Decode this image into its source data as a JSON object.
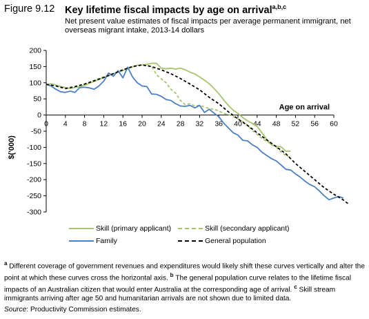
{
  "figure": {
    "number": "Figure 9.12",
    "title": "Key lifetime fiscal impacts by age on arrival",
    "title_notes": "a,b,c",
    "subtitle": "Net present value estimates of fiscal impacts per average permanent immigrant, net overseas migrant intake, 2013-14 dollars"
  },
  "chart_data": {
    "type": "line",
    "xlabel": "Age on arrival",
    "ylabel": "$('000)",
    "xlim": [
      0,
      60
    ],
    "ylim": [
      -300,
      200
    ],
    "xticks": [
      "0",
      "4",
      "8",
      "12",
      "16",
      "20",
      "24",
      "28",
      "32",
      "36",
      "40",
      "44",
      "48",
      "52",
      "56",
      "60"
    ],
    "yticks": [
      "200",
      "150",
      "100",
      "50",
      "0",
      "-50",
      "-100",
      "-150",
      "-200",
      "-250",
      "-300"
    ],
    "grid": false,
    "legend_position": "bottom",
    "series": [
      {
        "name": "Skill (primary applicant)",
        "color": "#a6c46a",
        "dash": "solid",
        "points": [
          [
            0,
            92
          ],
          [
            1,
            97
          ],
          [
            2,
            93
          ],
          [
            3,
            88
          ],
          [
            4,
            85
          ],
          [
            5,
            82
          ],
          [
            6,
            85
          ],
          [
            7,
            88
          ],
          [
            8,
            92
          ],
          [
            9,
            98
          ],
          [
            10,
            104
          ],
          [
            11,
            110
          ],
          [
            12,
            116
          ],
          [
            13,
            122
          ],
          [
            14,
            128
          ],
          [
            15,
            133
          ],
          [
            16,
            138
          ],
          [
            17,
            143
          ],
          [
            18,
            149
          ],
          [
            19,
            154
          ],
          [
            20,
            155
          ],
          [
            21,
            157
          ],
          [
            22,
            160
          ],
          [
            23,
            160
          ],
          [
            24,
            145
          ],
          [
            25,
            143
          ],
          [
            26,
            145
          ],
          [
            27,
            142
          ],
          [
            28,
            145
          ],
          [
            29,
            140
          ],
          [
            30,
            133
          ],
          [
            31,
            127
          ],
          [
            32,
            118
          ],
          [
            33,
            108
          ],
          [
            34,
            97
          ],
          [
            35,
            82
          ],
          [
            36,
            66
          ],
          [
            37,
            47
          ],
          [
            38,
            30
          ],
          [
            39,
            15
          ],
          [
            40,
            5
          ],
          [
            41,
            -8
          ],
          [
            42,
            -18
          ],
          [
            43,
            -26
          ],
          [
            44,
            -35
          ],
          [
            45,
            -55
          ],
          [
            46,
            -75
          ],
          [
            47,
            -92
          ],
          [
            48,
            -97
          ],
          [
            49,
            -98
          ],
          [
            50,
            -112
          ],
          [
            51,
            -112
          ]
        ]
      },
      {
        "name": "Skill (secondary applicant)",
        "color": "#a6c46a",
        "dash": "dashed",
        "points": [
          [
            0,
            93
          ],
          [
            1,
            96
          ],
          [
            2,
            92
          ],
          [
            3,
            86
          ],
          [
            4,
            84
          ],
          [
            5,
            82
          ],
          [
            6,
            86
          ],
          [
            7,
            90
          ],
          [
            8,
            95
          ],
          [
            9,
            101
          ],
          [
            10,
            107
          ],
          [
            11,
            113
          ],
          [
            12,
            119
          ],
          [
            13,
            124
          ],
          [
            14,
            128
          ],
          [
            15,
            133
          ],
          [
            16,
            137
          ],
          [
            17,
            145
          ],
          [
            18,
            150
          ],
          [
            19,
            153
          ],
          [
            20,
            156
          ],
          [
            21,
            155
          ],
          [
            22,
            150
          ],
          [
            23,
            125
          ],
          [
            24,
            112
          ],
          [
            25,
            100
          ],
          [
            26,
            80
          ],
          [
            27,
            68
          ],
          [
            28,
            45
          ],
          [
            29,
            32
          ],
          [
            30,
            35
          ],
          [
            31,
            28
          ],
          [
            32,
            30
          ],
          [
            33,
            25
          ],
          [
            34,
            20
          ],
          [
            35,
            18
          ],
          [
            36,
            13
          ],
          [
            37,
            5
          ],
          [
            38,
            2
          ],
          [
            39,
            -5
          ],
          [
            40,
            -12
          ],
          [
            41,
            -20
          ],
          [
            42,
            -32
          ],
          [
            43,
            -48
          ],
          [
            44,
            -60
          ],
          [
            45,
            -72
          ],
          [
            46,
            -82
          ],
          [
            47,
            -90
          ],
          [
            48,
            -100
          ],
          [
            49,
            -114
          ],
          [
            50,
            -125
          ],
          [
            51,
            -132
          ]
        ]
      },
      {
        "name": "Family",
        "color": "#4a7fc4",
        "dash": "solid",
        "points": [
          [
            0,
            95
          ],
          [
            1,
            90
          ],
          [
            2,
            80
          ],
          [
            3,
            72
          ],
          [
            4,
            70
          ],
          [
            5,
            74
          ],
          [
            6,
            70
          ],
          [
            7,
            85
          ],
          [
            8,
            86
          ],
          [
            9,
            84
          ],
          [
            10,
            80
          ],
          [
            11,
            90
          ],
          [
            12,
            105
          ],
          [
            13,
            130
          ],
          [
            14,
            120
          ],
          [
            15,
            137
          ],
          [
            16,
            115
          ],
          [
            17,
            148
          ],
          [
            18,
            118
          ],
          [
            19,
            100
          ],
          [
            20,
            90
          ],
          [
            21,
            88
          ],
          [
            22,
            65
          ],
          [
            23,
            64
          ],
          [
            24,
            58
          ],
          [
            25,
            48
          ],
          [
            26,
            45
          ],
          [
            27,
            35
          ],
          [
            28,
            28
          ],
          [
            29,
            27
          ],
          [
            30,
            30
          ],
          [
            31,
            22
          ],
          [
            32,
            30
          ],
          [
            33,
            8
          ],
          [
            34,
            18
          ],
          [
            35,
            6
          ],
          [
            36,
            -5
          ],
          [
            37,
            -25
          ],
          [
            38,
            -40
          ],
          [
            39,
            -55
          ],
          [
            40,
            -62
          ],
          [
            41,
            -78
          ],
          [
            42,
            -80
          ],
          [
            43,
            -92
          ],
          [
            44,
            -100
          ],
          [
            45,
            -115
          ],
          [
            46,
            -125
          ],
          [
            47,
            -135
          ],
          [
            48,
            -142
          ],
          [
            49,
            -155
          ],
          [
            50,
            -168
          ],
          [
            51,
            -170
          ],
          [
            52,
            -182
          ],
          [
            53,
            -192
          ],
          [
            54,
            -205
          ],
          [
            55,
            -215
          ],
          [
            56,
            -222
          ],
          [
            57,
            -235
          ],
          [
            58,
            -250
          ],
          [
            59,
            -262
          ],
          [
            60,
            -257
          ],
          [
            61,
            -252
          ],
          [
            62,
            -257
          ]
        ]
      },
      {
        "name": "General population",
        "color": "#000000",
        "dash": "dashed",
        "points": [
          [
            0,
            95
          ],
          [
            2,
            90
          ],
          [
            4,
            82
          ],
          [
            6,
            88
          ],
          [
            8,
            96
          ],
          [
            10,
            106
          ],
          [
            12,
            116
          ],
          [
            14,
            128
          ],
          [
            16,
            140
          ],
          [
            18,
            150
          ],
          [
            20,
            155
          ],
          [
            22,
            150
          ],
          [
            24,
            140
          ],
          [
            26,
            128
          ],
          [
            28,
            113
          ],
          [
            30,
            96
          ],
          [
            32,
            78
          ],
          [
            34,
            55
          ],
          [
            36,
            35
          ],
          [
            38,
            10
          ],
          [
            40,
            -12
          ],
          [
            42,
            -32
          ],
          [
            44,
            -55
          ],
          [
            46,
            -77
          ],
          [
            48,
            -98
          ],
          [
            50,
            -120
          ],
          [
            52,
            -150
          ],
          [
            54,
            -175
          ],
          [
            56,
            -200
          ],
          [
            58,
            -225
          ],
          [
            60,
            -245
          ],
          [
            62,
            -263
          ],
          [
            63,
            -275
          ]
        ]
      }
    ]
  },
  "notes": {
    "a_marker": "a",
    "a_text": "Different coverage of government revenues and expenditures would likely shift these curves vertically and alter the point at which these curves cross the horizontal axis.",
    "b_marker": "b",
    "b_text": "The general population curve relates to the lifetime fiscal impacts of an Australian citizen that would enter Australia at the corresponding age of arrival.",
    "c_marker": "c",
    "c_text": "Skill stream immigrants arriving after age 50 and humanitarian arrivals are not shown due to limited data.",
    "source_label": "Source",
    "source_text": ": Productivity Commission estimates."
  }
}
